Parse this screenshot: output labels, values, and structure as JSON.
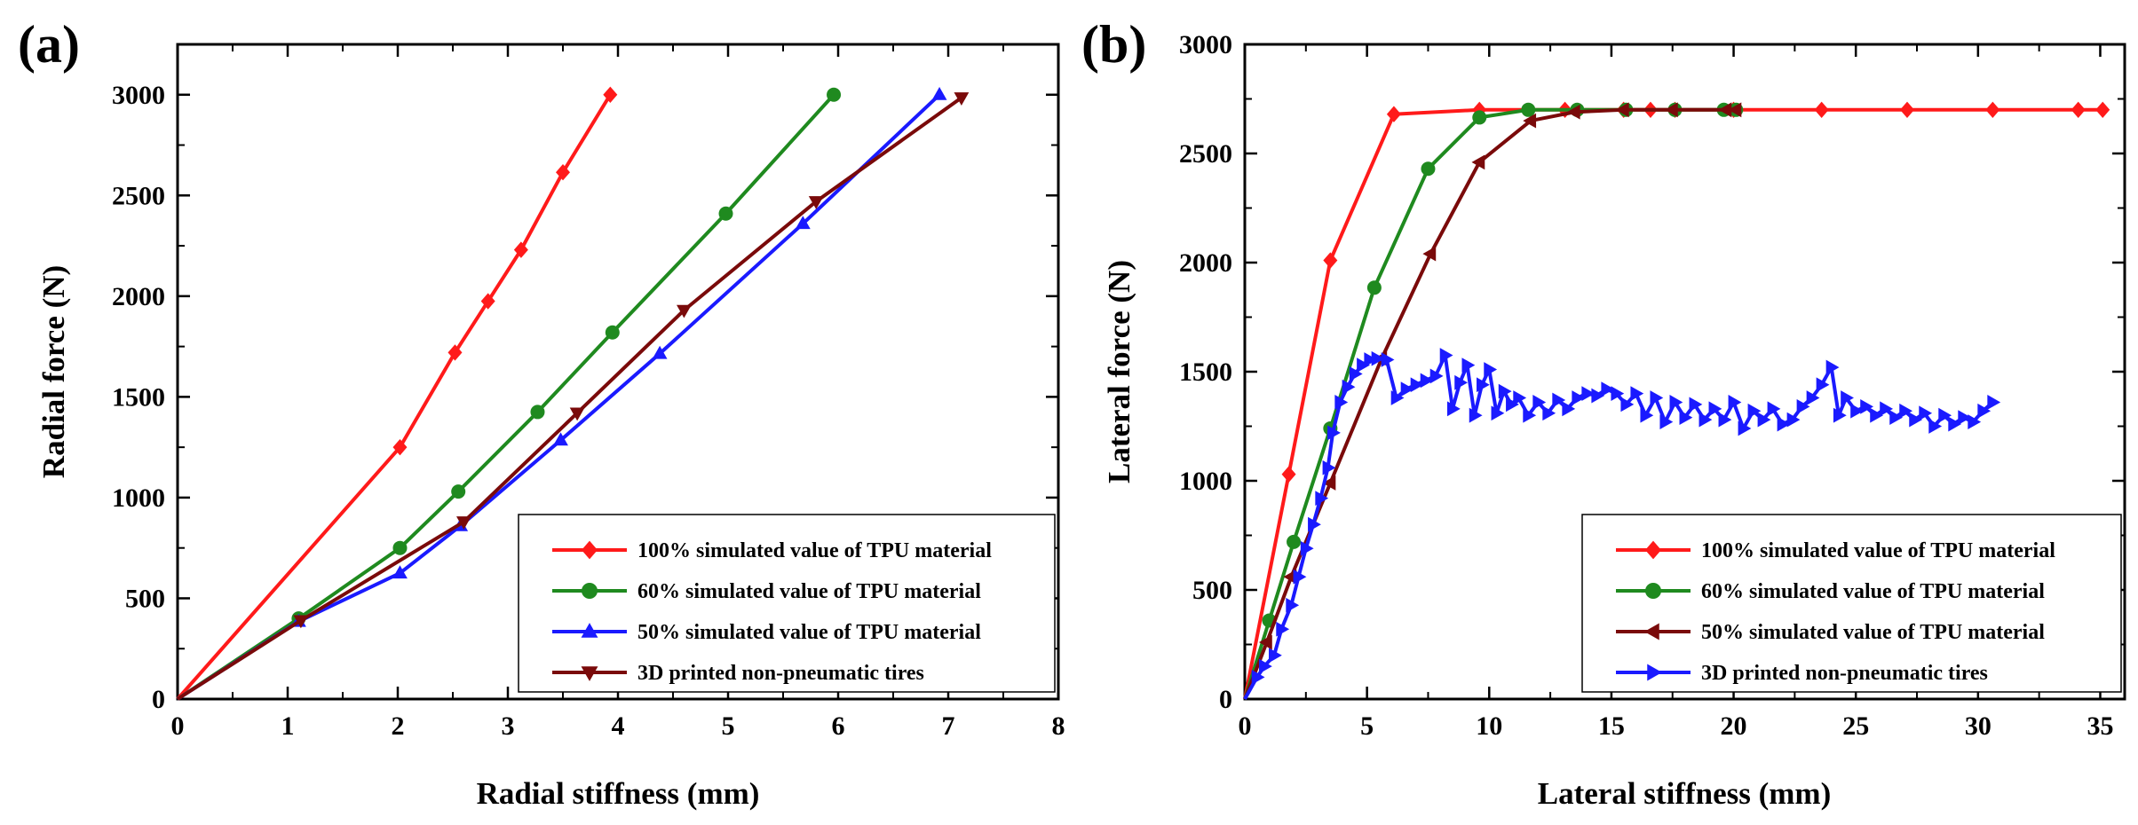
{
  "chart_data": [
    {
      "panel_label": "(a)",
      "type": "line",
      "xlabel": "Radial stiffness (mm)",
      "ylabel": "Radial force (N)",
      "xlim": [
        0,
        8
      ],
      "ylim": [
        0,
        3250
      ],
      "xticks": [
        0,
        1,
        2,
        3,
        4,
        5,
        6,
        7,
        8
      ],
      "yticks": [
        0,
        500,
        1000,
        1500,
        2000,
        2500,
        3000
      ],
      "legend_position": "bottom-right",
      "series": [
        {
          "name": "100% simulated value of TPU material",
          "color": "#ff1a1a",
          "marker": "diamond",
          "points": [
            [
              0,
              0
            ],
            [
              2.02,
              1250
            ],
            [
              2.52,
              1720
            ],
            [
              2.82,
              1975
            ],
            [
              3.12,
              2230
            ],
            [
              3.5,
              2615
            ],
            [
              3.93,
              3000
            ]
          ]
        },
        {
          "name": "60% simulated value of TPU material",
          "color": "#1f8a1f",
          "marker": "circle",
          "points": [
            [
              0,
              0
            ],
            [
              1.1,
              400
            ],
            [
              2.02,
              750
            ],
            [
              2.55,
              1030
            ],
            [
              3.27,
              1425
            ],
            [
              3.95,
              1820
            ],
            [
              4.98,
              2410
            ],
            [
              5.96,
              3000
            ]
          ]
        },
        {
          "name": "50% simulated value of TPU material",
          "color": "#1a1aff",
          "marker": "triangle-up",
          "points": [
            [
              0,
              0
            ],
            [
              1.1,
              385
            ],
            [
              2.02,
              625
            ],
            [
              2.57,
              860
            ],
            [
              3.48,
              1285
            ],
            [
              4.38,
              1715
            ],
            [
              5.68,
              2360
            ],
            [
              6.92,
              3000
            ]
          ]
        },
        {
          "name": "3D printed non-pneumatic tires",
          "color": "#7a0a0a",
          "marker": "triangle-down",
          "points": [
            [
              0,
              0
            ],
            [
              1.12,
              390
            ],
            [
              2.6,
              880
            ],
            [
              3.63,
              1420
            ],
            [
              4.6,
              1930
            ],
            [
              5.8,
              2470
            ],
            [
              7.12,
              2985
            ]
          ]
        }
      ]
    },
    {
      "panel_label": "(b)",
      "type": "line",
      "xlabel": "Lateral stiffness (mm)",
      "ylabel": "Lateral force (N)",
      "xlim": [
        0,
        36
      ],
      "ylim": [
        0,
        3000
      ],
      "xticks": [
        0,
        5,
        10,
        15,
        20,
        25,
        30,
        35
      ],
      "yticks": [
        0,
        500,
        1000,
        1500,
        2000,
        2500,
        3000
      ],
      "legend_position": "bottom-right",
      "series": [
        {
          "name": "100% simulated value of TPU material",
          "color": "#ff1a1a",
          "marker": "diamond",
          "points": [
            [
              0,
              0
            ],
            [
              1.8,
              1030
            ],
            [
              3.5,
              2010
            ],
            [
              6.1,
              2680
            ],
            [
              9.6,
              2700
            ],
            [
              13.1,
              2700
            ],
            [
              15.5,
              2700
            ],
            [
              16.6,
              2700
            ],
            [
              17.6,
              2700
            ],
            [
              20.0,
              2700
            ],
            [
              23.6,
              2700
            ],
            [
              27.1,
              2700
            ],
            [
              30.6,
              2700
            ],
            [
              34.1,
              2700
            ],
            [
              35.1,
              2700
            ]
          ]
        },
        {
          "name": "60% simulated value of TPU material",
          "color": "#1f8a1f",
          "marker": "circle",
          "points": [
            [
              0,
              0
            ],
            [
              1.0,
              360
            ],
            [
              2.0,
              720
            ],
            [
              3.5,
              1240
            ],
            [
              5.3,
              1885
            ],
            [
              7.5,
              2430
            ],
            [
              9.6,
              2665
            ],
            [
              11.6,
              2700
            ],
            [
              13.6,
              2700
            ],
            [
              15.6,
              2700
            ],
            [
              17.6,
              2700
            ],
            [
              19.6,
              2700
            ],
            [
              20.1,
              2700
            ]
          ]
        },
        {
          "name": "50% simulated value of TPU material",
          "color": "#7a0a0a",
          "marker": "triangle-left",
          "points": [
            [
              0,
              0
            ],
            [
              0.9,
              260
            ],
            [
              1.9,
              560
            ],
            [
              3.5,
              990
            ],
            [
              5.6,
              1560
            ],
            [
              7.6,
              2040
            ],
            [
              9.6,
              2460
            ],
            [
              11.7,
              2650
            ],
            [
              13.5,
              2690
            ],
            [
              15.5,
              2700
            ],
            [
              17.5,
              2700
            ],
            [
              19.7,
              2700
            ],
            [
              20.1,
              2700
            ]
          ]
        },
        {
          "name": "3D printed non-pneumatic tires",
          "color": "#1a1aff",
          "marker": "triangle-right",
          "points": [
            [
              0,
              0
            ],
            [
              0.5,
              100
            ],
            [
              0.8,
              150
            ],
            [
              1.2,
              200
            ],
            [
              1.5,
              320
            ],
            [
              1.9,
              430
            ],
            [
              2.2,
              560
            ],
            [
              2.5,
              690
            ],
            [
              2.8,
              800
            ],
            [
              3.1,
              920
            ],
            [
              3.4,
              1060
            ],
            [
              3.6,
              1220
            ],
            [
              3.9,
              1360
            ],
            [
              4.2,
              1430
            ],
            [
              4.5,
              1490
            ],
            [
              4.8,
              1530
            ],
            [
              5.1,
              1555
            ],
            [
              5.4,
              1560
            ],
            [
              5.8,
              1555
            ],
            [
              6.2,
              1380
            ],
            [
              6.6,
              1420
            ],
            [
              7.0,
              1440
            ],
            [
              7.4,
              1460
            ],
            [
              7.8,
              1480
            ],
            [
              8.2,
              1575
            ],
            [
              8.5,
              1330
            ],
            [
              8.8,
              1450
            ],
            [
              9.1,
              1530
            ],
            [
              9.4,
              1300
            ],
            [
              9.7,
              1440
            ],
            [
              10.0,
              1510
            ],
            [
              10.3,
              1310
            ],
            [
              10.6,
              1410
            ],
            [
              10.9,
              1350
            ],
            [
              11.2,
              1380
            ],
            [
              11.6,
              1300
            ],
            [
              12.0,
              1360
            ],
            [
              12.4,
              1310
            ],
            [
              12.8,
              1370
            ],
            [
              13.2,
              1330
            ],
            [
              13.6,
              1380
            ],
            [
              14.0,
              1400
            ],
            [
              14.4,
              1390
            ],
            [
              14.8,
              1420
            ],
            [
              15.2,
              1400
            ],
            [
              15.6,
              1350
            ],
            [
              16.0,
              1400
            ],
            [
              16.4,
              1300
            ],
            [
              16.8,
              1380
            ],
            [
              17.2,
              1270
            ],
            [
              17.6,
              1360
            ],
            [
              18.0,
              1290
            ],
            [
              18.4,
              1350
            ],
            [
              18.8,
              1280
            ],
            [
              19.2,
              1330
            ],
            [
              19.6,
              1280
            ],
            [
              20.0,
              1360
            ],
            [
              20.4,
              1240
            ],
            [
              20.8,
              1320
            ],
            [
              21.2,
              1280
            ],
            [
              21.6,
              1330
            ],
            [
              22.0,
              1260
            ],
            [
              22.4,
              1280
            ],
            [
              22.8,
              1340
            ],
            [
              23.2,
              1380
            ],
            [
              23.6,
              1440
            ],
            [
              24.0,
              1520
            ],
            [
              24.3,
              1300
            ],
            [
              24.6,
              1380
            ],
            [
              25.0,
              1320
            ],
            [
              25.4,
              1340
            ],
            [
              25.8,
              1300
            ],
            [
              26.2,
              1330
            ],
            [
              26.6,
              1290
            ],
            [
              27.0,
              1320
            ],
            [
              27.4,
              1280
            ],
            [
              27.8,
              1310
            ],
            [
              28.2,
              1250
            ],
            [
              28.6,
              1300
            ],
            [
              29.0,
              1260
            ],
            [
              29.4,
              1290
            ],
            [
              29.8,
              1270
            ],
            [
              30.2,
              1320
            ],
            [
              30.6,
              1360
            ]
          ]
        }
      ]
    }
  ]
}
